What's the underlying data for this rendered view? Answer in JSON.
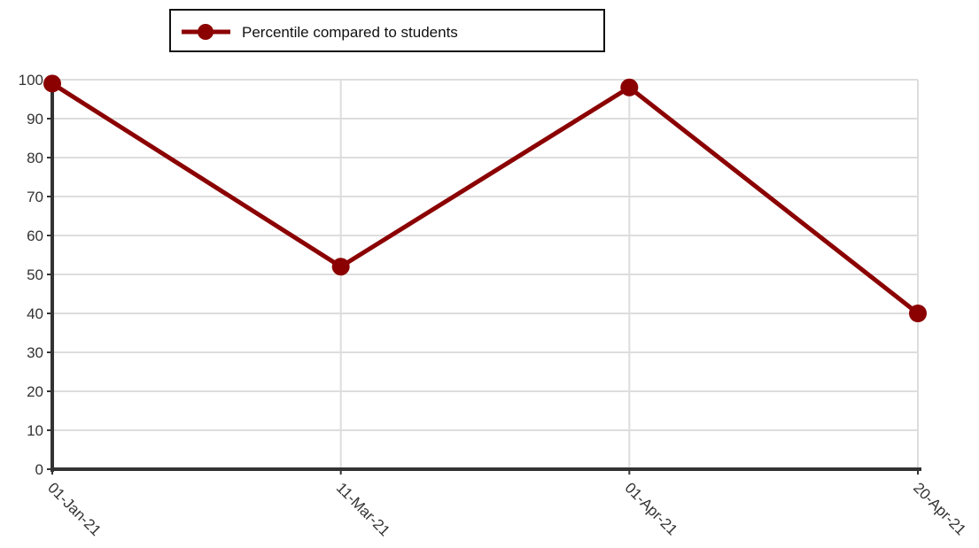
{
  "chart_data": {
    "type": "line",
    "title": "",
    "xlabel": "",
    "ylabel": "",
    "categories": [
      "01-Jan-21",
      "11-Mar-21",
      "01-Apr-21",
      "20-Apr-21"
    ],
    "series": [
      {
        "name": "Percentile compared to students",
        "values": [
          99,
          52,
          98,
          40
        ],
        "color": "#8b0000"
      }
    ],
    "ylim": [
      0,
      100
    ],
    "yticks": [
      0,
      10,
      20,
      30,
      40,
      50,
      60,
      70,
      80,
      90,
      100
    ],
    "grid": true,
    "legend_position": "top-left"
  },
  "colors": {
    "grid": "#dddddd",
    "axis": "#333333",
    "series": "#8b0000"
  }
}
